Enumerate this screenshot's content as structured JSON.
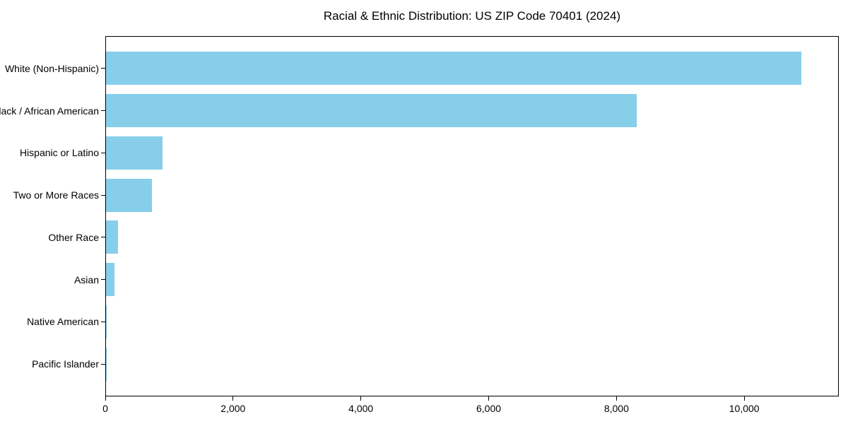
{
  "figure": {
    "background": "#ffffff"
  },
  "chart_data": {
    "type": "bar",
    "orientation": "horizontal",
    "title": "Racial & Ethnic Distribution: US ZIP Code 70401 (2024)",
    "categories": [
      "White (Non-Hispanic)",
      "Black / African American",
      "Hispanic or Latino",
      "Two or More Races",
      "Other Race",
      "Asian",
      "Native American",
      "Pacific Islander"
    ],
    "values": [
      10900,
      8320,
      885,
      720,
      190,
      135,
      15,
      5
    ],
    "xlabel": "",
    "ylabel": "",
    "xlim": [
      0,
      11480
    ],
    "xticks": [
      0,
      2000,
      4000,
      6000,
      8000,
      10000
    ],
    "xtick_labels": [
      "0",
      "2,000",
      "4,000",
      "6,000",
      "8,000",
      "10,000"
    ],
    "bar_color": "#87CEEB",
    "axis_color": "#000000",
    "text_color": "#000000",
    "grid": false,
    "legend": false
  }
}
